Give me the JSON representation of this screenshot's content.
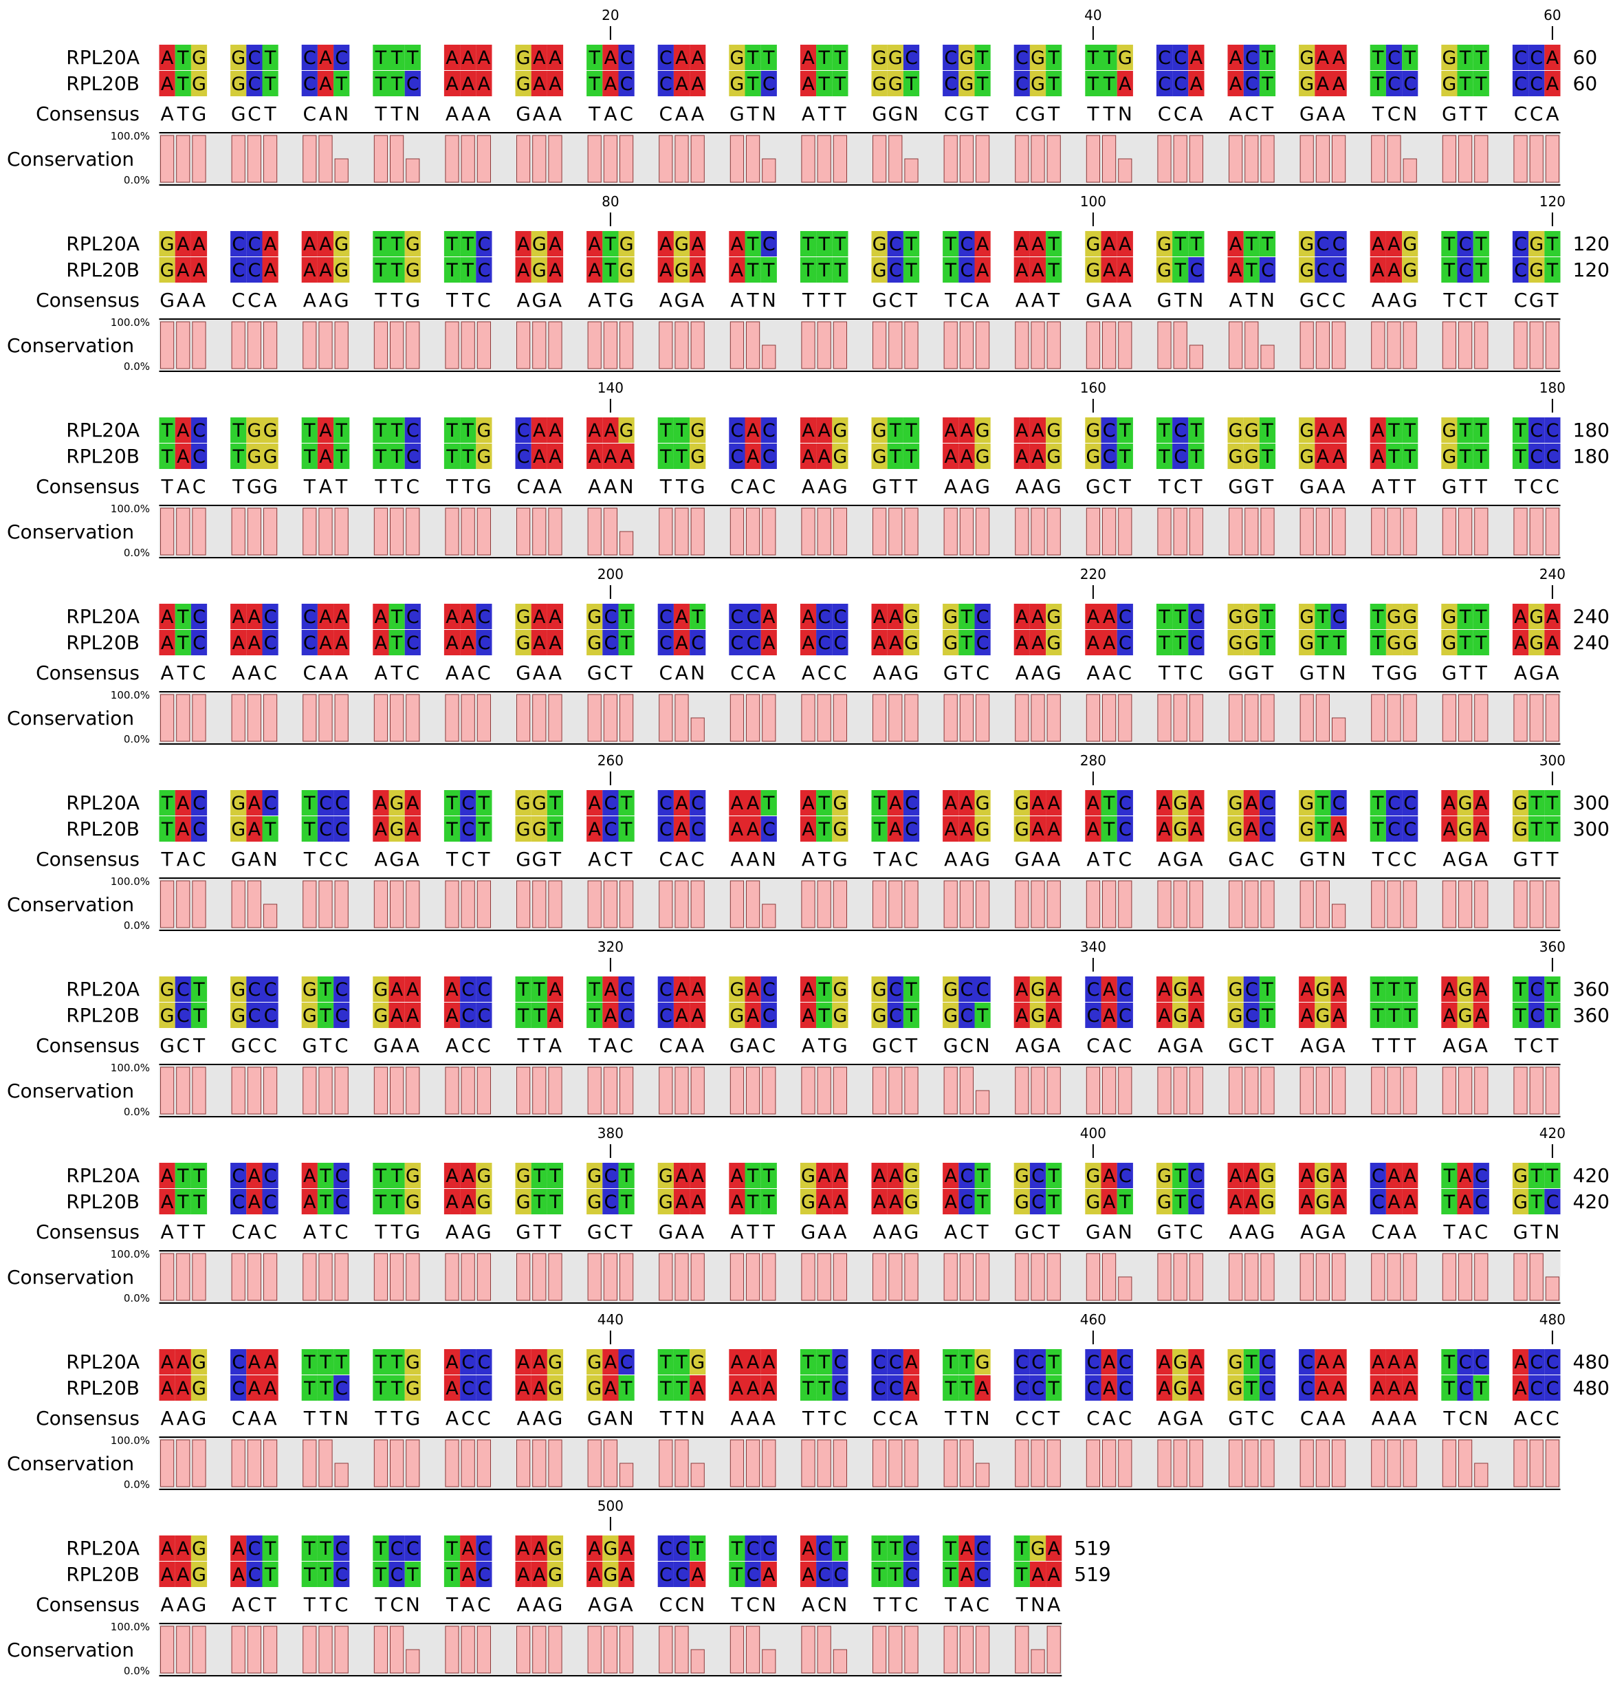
{
  "sequences": [
    {
      "name": "RPL20A",
      "seq": "ATGGCTCACTTTAAAGAATACCAAGTTATTGGCCGTCGTTTGCCAACTGAATCTGTTCCAGAACCAAAGTTGTTCAGAATGAGAATCTTTGCTTCAAATGAAGTTATTGCCAAGTCTCGTTACTGGTATTTCTTGCAAAAGTTGCACAAGGTTAAGAAGGCTTCTGGTGAAATTGTTTCCATCAACCAAATCAACGAAGCTCATCCAACCAAGGTCAAGAACTTCGGTGTCTGGGTTAGATACGACTCCAGATCTGGTACTCACAATATGTACAAGGAAATCAGAGACGTCTCCAGAGTTGCTGCCGTCGAAACCTTATACCAAGACATGGCTGCCAGACACAGAGCTAGATTTAGATCTATTCACATCTTGAAGGTTGCTGAAATTGAAAAGACTGCTGACGTCAAGAGACAATACGTTAAGCAATTTTTGACCAAGGACTTGAAATTCCCATTGCCTCACAGAGTCCAAAAATCCACCAAGACTTTCTCCTACAAGAGACCTTCCACTTTCTACTGA"
    },
    {
      "name": "RPL20B",
      "seq": "ATGGCTCATTTCAAAGAATACCAAGTCATTGGTCGTCGTTTACCAACTGAATCCGTTCCAGAACCAAAGTTGTTCAGAATGAGAATTTTTGCTTCAAATGAAGTCATCGCCAAGTCTCGTTACTGGTATTTCTTGCAAAAATTGCACAAGGTTAAGAAGGCTTCTGGTGAAATTGTTTCCATCAACCAAATCAACGAAGCTCACCCAACCAAGGTCAAGAACTTCGGTGTTTGGGTTAGATACGATTCCAGATCTGGTACTCACAACATGTACAAGGAAATCAGAGACGTATCCAGAGTTGCTGCCGTCGAAACCTTATACCAAGACATGGCTGCTAGACACAGAGCTAGATTTAGATCTATTCACATCTTGAAGGTTGCTGAAATTGAAAAGACTGCTGATGTCAAGAGACAATACGTCAAGCAATTCTTGACCAAGGATTTAAAATTCCCATTACCTCACAGAGTCCAAAAATCTACCAAGACTTTCTCTTACAAGAGACCATCAACCTTCTACTAA"
    }
  ],
  "alignment_length": 519,
  "block_width": 60,
  "ruler_interval": 20,
  "consensus_label": "Consensus",
  "conservation_label": "Conservation",
  "conservation_axis": {
    "top": "100.0%",
    "bottom": "0.0%"
  },
  "mismatch_symbol": "N",
  "colors": {
    "A": "#e0262c",
    "C": "#2f2fcf",
    "G": "#d4cc3a",
    "T": "#2fcf2f",
    "conservation_bar": "#f8b5b5",
    "conservation_panel": "#e6e6e6",
    "text": "#000000"
  }
}
